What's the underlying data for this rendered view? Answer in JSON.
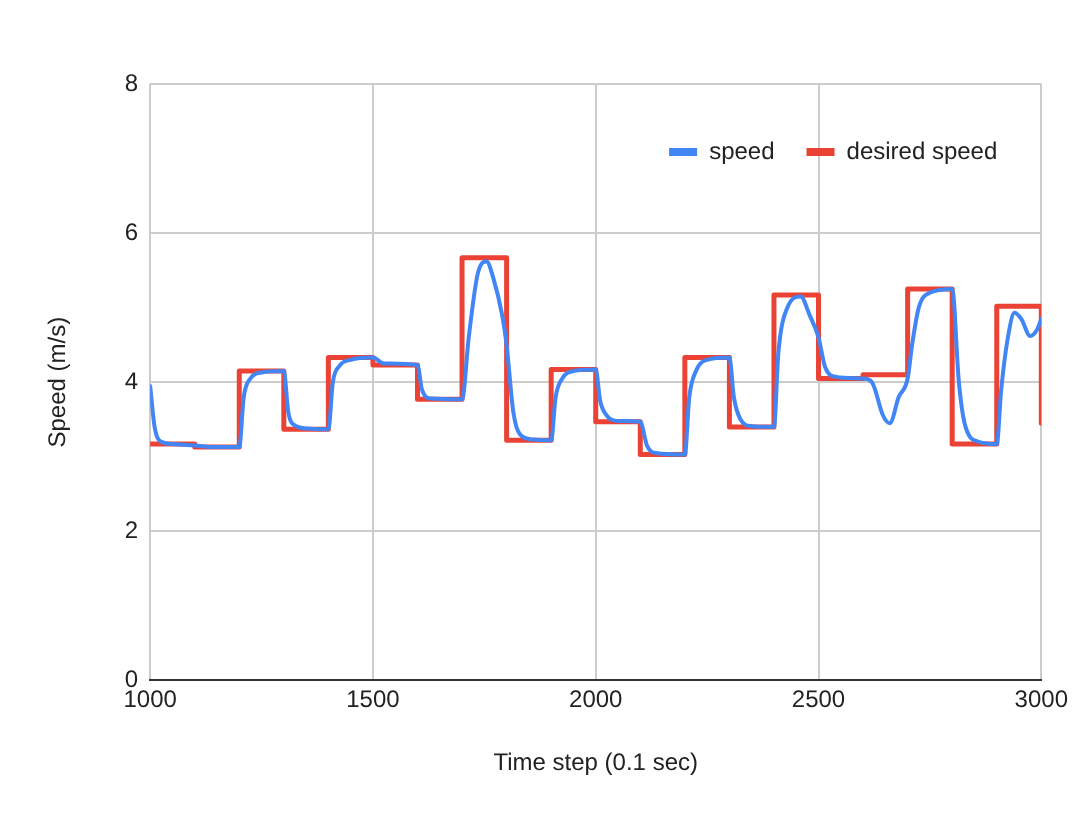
{
  "chart_data": {
    "type": "line",
    "xlabel": "Time step (0.1 sec)",
    "ylabel": "Speed (m/s)",
    "xlim": [
      1000,
      3000
    ],
    "xticks": [
      1000,
      1500,
      2000,
      2500,
      3000
    ],
    "ylim": [
      0,
      8
    ],
    "yticks": [
      0,
      2,
      4,
      6,
      8
    ],
    "grid": true,
    "legend": "top right",
    "marker": "none",
    "line_style": "solid",
    "series": [
      {
        "name": "speed",
        "color": "#4285f4",
        "x": [
          1000,
          1010,
          1025,
          1050,
          1100,
          1150,
          1200,
          1210,
          1225,
          1250,
          1300,
          1310,
          1325,
          1350,
          1400,
          1410,
          1425,
          1450,
          1500,
          1525,
          1600,
          1610,
          1630,
          1700,
          1715,
          1735,
          1755,
          1770,
          1790,
          1800,
          1815,
          1830,
          1860,
          1900,
          1910,
          1925,
          1950,
          2000,
          2010,
          2025,
          2050,
          2100,
          2115,
          2135,
          2200,
          2210,
          2225,
          2250,
          2300,
          2310,
          2325,
          2350,
          2400,
          2410,
          2430,
          2460,
          2480,
          2500,
          2515,
          2540,
          2600,
          2620,
          2645,
          2660,
          2680,
          2700,
          2710,
          2725,
          2750,
          2800,
          2815,
          2830,
          2860,
          2900,
          2910,
          2925,
          2940,
          2955,
          2975,
          2990,
          3000
        ],
        "values": [
          3.95,
          3.4,
          3.2,
          3.17,
          3.15,
          3.13,
          3.13,
          3.8,
          4.05,
          4.13,
          4.15,
          3.6,
          3.42,
          3.38,
          3.37,
          4.0,
          4.22,
          4.3,
          4.33,
          4.25,
          4.23,
          3.9,
          3.78,
          3.77,
          4.6,
          5.45,
          5.62,
          5.4,
          4.9,
          4.5,
          3.6,
          3.3,
          3.23,
          3.22,
          3.8,
          4.05,
          4.15,
          4.17,
          3.75,
          3.55,
          3.48,
          3.47,
          3.15,
          3.05,
          3.03,
          3.8,
          4.15,
          4.3,
          4.33,
          3.8,
          3.5,
          3.41,
          3.4,
          4.4,
          5.0,
          5.15,
          4.9,
          4.6,
          4.2,
          4.07,
          4.05,
          4.0,
          3.55,
          3.45,
          3.8,
          4.05,
          4.5,
          5.0,
          5.2,
          5.25,
          4.0,
          3.4,
          3.2,
          3.17,
          3.9,
          4.6,
          4.93,
          4.85,
          4.62,
          4.7,
          4.85
        ]
      },
      {
        "name": "desired speed",
        "type": "step",
        "color": "#ea4335",
        "x": [
          1000,
          1100,
          1200,
          1300,
          1400,
          1500,
          1600,
          1700,
          1800,
          1900,
          2000,
          2100,
          2200,
          2300,
          2400,
          2500,
          2600,
          2700,
          2800,
          2900,
          3000,
          3000
        ],
        "values": [
          3.17,
          3.13,
          4.15,
          3.37,
          4.33,
          4.23,
          3.77,
          5.67,
          3.22,
          4.17,
          3.47,
          3.03,
          4.33,
          3.4,
          5.17,
          4.05,
          4.1,
          5.25,
          3.17,
          5.02,
          5.02,
          3.45
        ]
      }
    ]
  }
}
